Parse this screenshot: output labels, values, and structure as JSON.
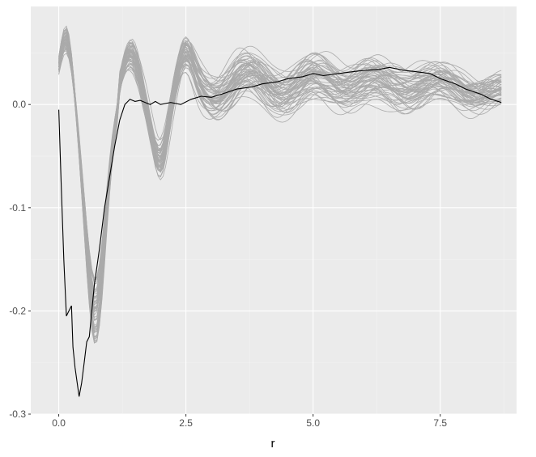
{
  "chart_data": {
    "type": "line",
    "title": "",
    "xlabel": "r",
    "ylabel": "",
    "xlim": [
      -0.55,
      9.0
    ],
    "ylim": [
      -0.3,
      0.095
    ],
    "x_ticks": [
      {
        "value": 0.0,
        "label": "0.0"
      },
      {
        "value": 2.5,
        "label": "2.5"
      },
      {
        "value": 5.0,
        "label": "5.0"
      },
      {
        "value": 7.5,
        "label": "7.5"
      }
    ],
    "y_ticks": [
      {
        "value": 0.0,
        "label": "0.0"
      },
      {
        "value": -0.1,
        "label": "-0.1"
      },
      {
        "value": -0.2,
        "label": "-0.2"
      },
      {
        "value": -0.3,
        "label": "-0.3"
      }
    ],
    "grid": true,
    "legend": "none",
    "colors": {
      "panel_bg": "#ebebeb",
      "grid_major": "#ffffff",
      "grid_minor": "#f3f3f3",
      "ensemble": "#aaaaaa",
      "main": "#000000"
    },
    "series": [
      {
        "x": [
          0.0,
          0.05,
          0.1,
          0.15,
          0.2,
          0.25,
          0.28,
          0.32,
          0.4,
          0.45,
          0.5,
          0.55,
          0.6,
          0.65,
          0.7,
          0.8,
          0.9,
          1.0,
          1.1,
          1.2,
          1.3,
          1.4,
          1.5,
          1.6,
          1.7,
          1.8,
          1.9,
          2.0,
          2.2,
          2.4,
          2.6,
          2.8,
          3.0,
          3.2,
          3.5,
          3.8,
          4.0,
          4.3,
          4.5,
          4.8,
          5.0,
          5.2,
          5.5,
          5.8,
          6.0,
          6.3,
          6.5,
          6.8,
          7.0,
          7.3,
          7.5,
          7.8,
          8.0,
          8.3,
          8.5,
          8.7
        ],
        "y": [
          -0.005,
          -0.08,
          -0.15,
          -0.205,
          -0.2,
          -0.195,
          -0.235,
          -0.255,
          -0.283,
          -0.27,
          -0.25,
          -0.23,
          -0.225,
          -0.2,
          -0.175,
          -0.14,
          -0.1,
          -0.07,
          -0.04,
          -0.015,
          0.0,
          0.005,
          0.003,
          0.004,
          0.002,
          0.0,
          0.003,
          0.0,
          0.002,
          0.0,
          0.005,
          0.008,
          0.007,
          0.01,
          0.015,
          0.017,
          0.02,
          0.022,
          0.025,
          0.027,
          0.03,
          0.028,
          0.03,
          0.032,
          0.033,
          0.034,
          0.036,
          0.033,
          0.032,
          0.03,
          0.025,
          0.02,
          0.015,
          0.01,
          0.005,
          0.002
        ]
      }
    ]
  }
}
